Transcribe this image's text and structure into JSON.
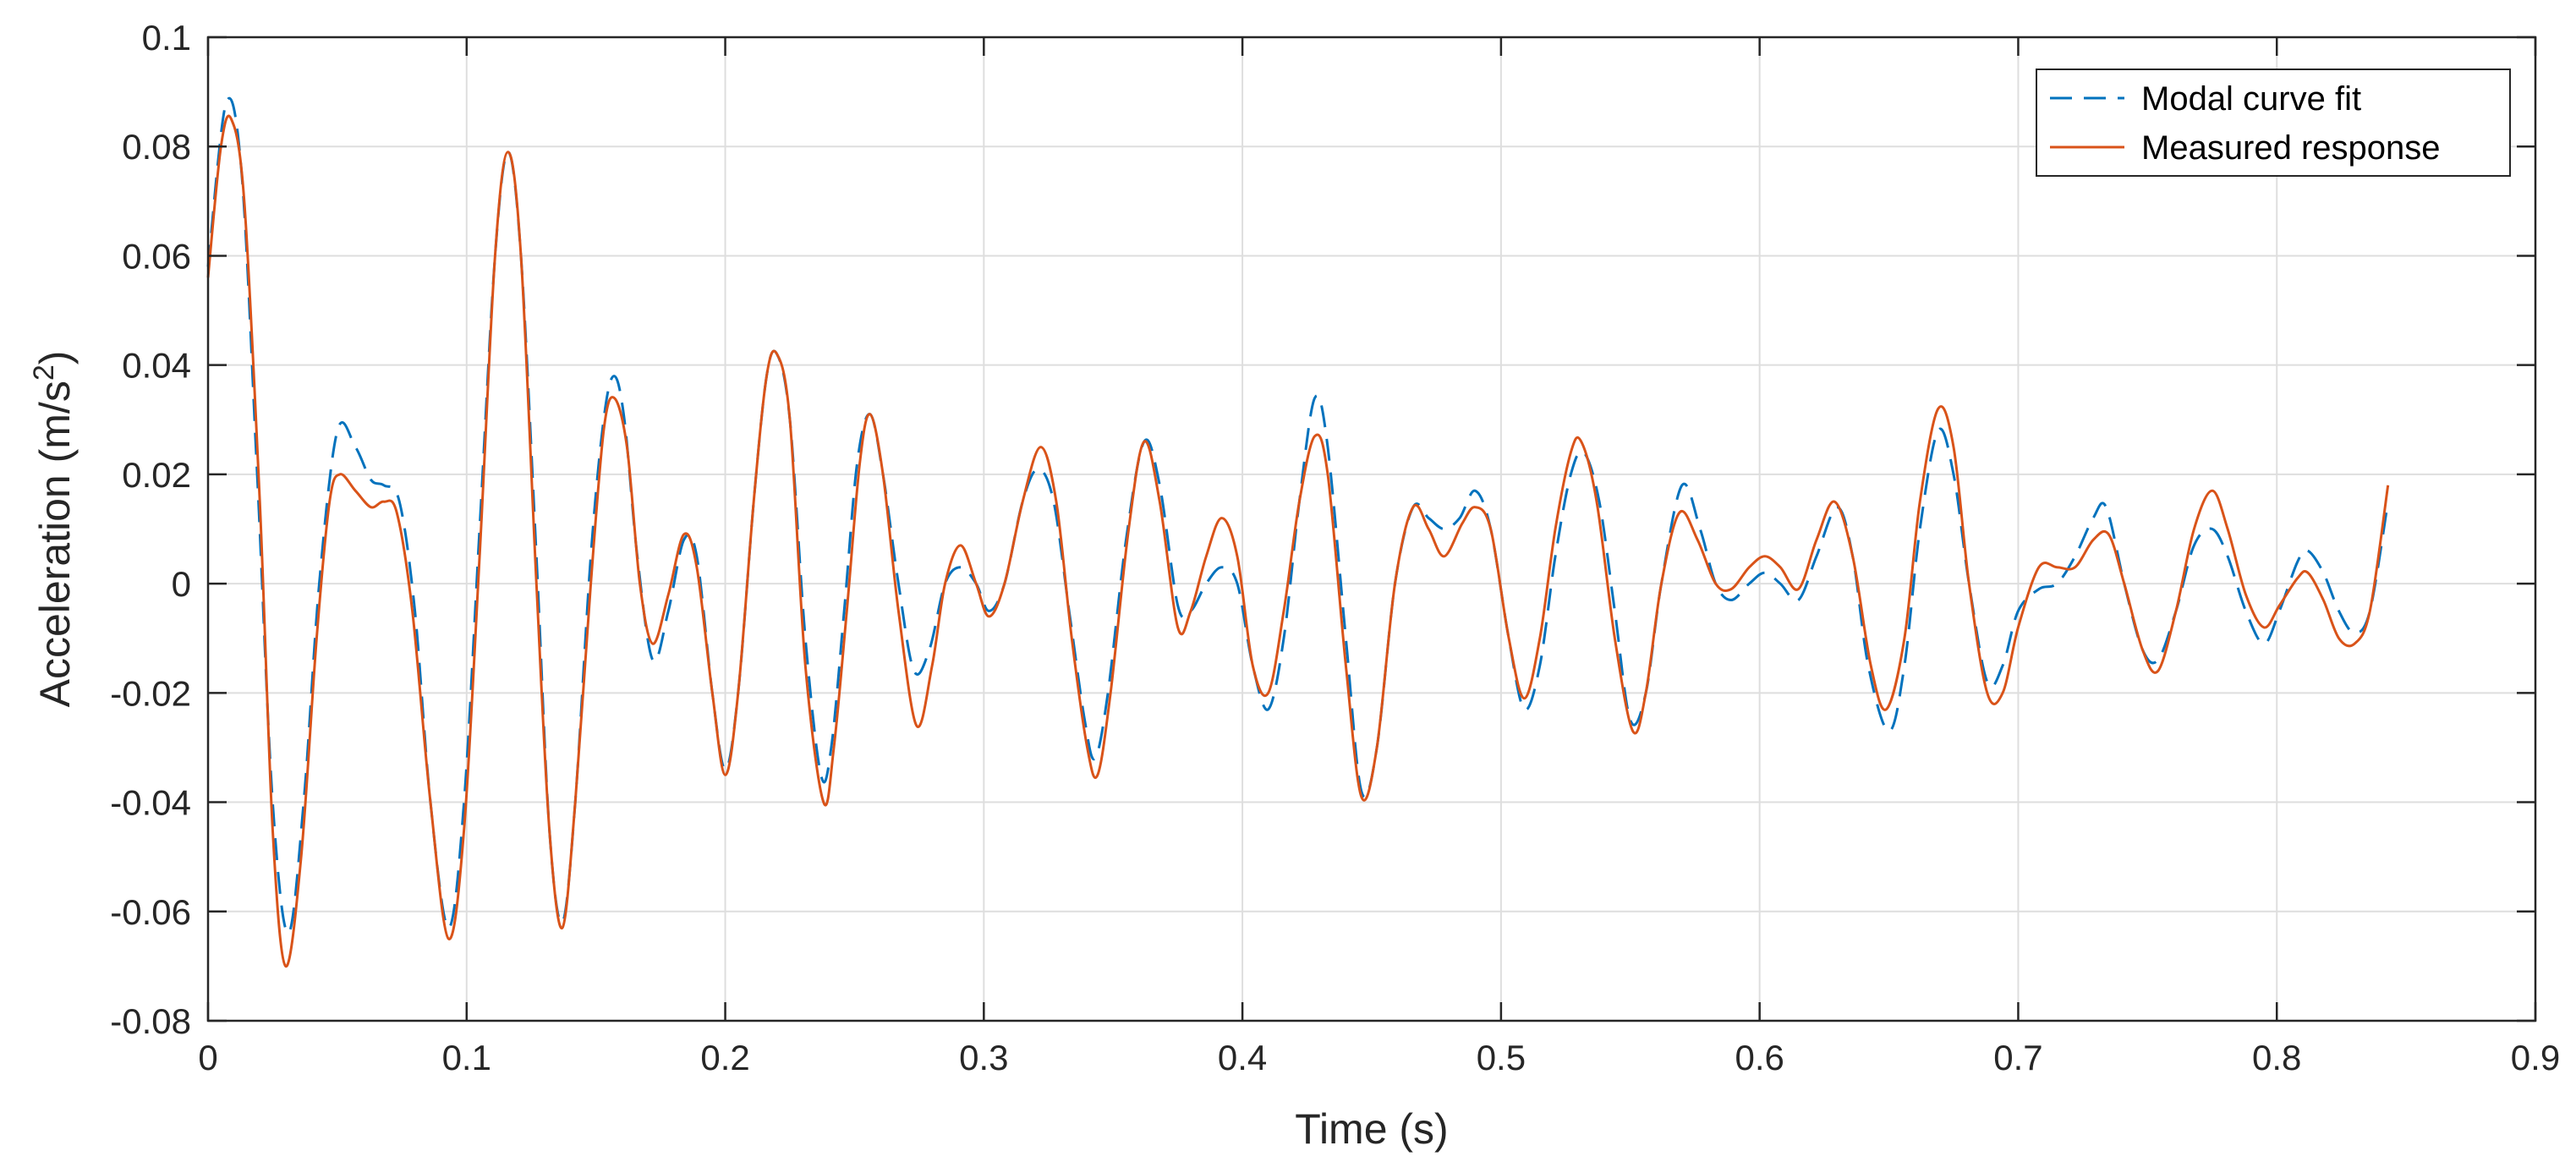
{
  "chart_data": {
    "type": "line",
    "title": "",
    "xlabel": "Time (s)",
    "ylabel_main": "Acceleration (m/s",
    "ylabel_sup": "2",
    "ylabel_close": ")",
    "xlim": [
      0,
      0.9
    ],
    "ylim": [
      -0.08,
      0.1
    ],
    "x_ticks": [
      0,
      0.1,
      0.2,
      0.3,
      0.4,
      0.5,
      0.6,
      0.7,
      0.8,
      0.9
    ],
    "x_tick_labels": [
      "0",
      "0.1",
      "0.2",
      "0.3",
      "0.4",
      "0.5",
      "0.6",
      "0.7",
      "0.8",
      "0.9"
    ],
    "y_ticks": [
      -0.08,
      -0.06,
      -0.04,
      -0.02,
      0,
      0.02,
      0.04,
      0.06,
      0.08,
      0.1
    ],
    "y_tick_labels": [
      "-0.08",
      "-0.06",
      "-0.04",
      "-0.02",
      "0",
      "0.02",
      "0.04",
      "0.06",
      "0.08",
      "0.1"
    ],
    "grid": true,
    "legend_position": "top-right",
    "series": [
      {
        "name": "Modal curve fit",
        "color": "#0072BD",
        "style": "dashed",
        "points": [
          [
            0.0,
            0.058
          ],
          [
            0.007,
            0.088
          ],
          [
            0.013,
            0.075
          ],
          [
            0.019,
            0.02
          ],
          [
            0.025,
            -0.04
          ],
          [
            0.031,
            -0.064
          ],
          [
            0.037,
            -0.04
          ],
          [
            0.043,
            0.0
          ],
          [
            0.05,
            0.028
          ],
          [
            0.057,
            0.025
          ],
          [
            0.063,
            0.019
          ],
          [
            0.068,
            0.018
          ],
          [
            0.074,
            0.015
          ],
          [
            0.08,
            -0.005
          ],
          [
            0.086,
            -0.04
          ],
          [
            0.093,
            -0.063
          ],
          [
            0.099,
            -0.04
          ],
          [
            0.105,
            0.01
          ],
          [
            0.111,
            0.06
          ],
          [
            0.116,
            0.079
          ],
          [
            0.121,
            0.06
          ],
          [
            0.127,
            0.005
          ],
          [
            0.132,
            -0.045
          ],
          [
            0.137,
            -0.062
          ],
          [
            0.142,
            -0.04
          ],
          [
            0.148,
            0.005
          ],
          [
            0.153,
            0.03
          ],
          [
            0.157,
            0.038
          ],
          [
            0.161,
            0.03
          ],
          [
            0.166,
            0.005
          ],
          [
            0.172,
            -0.014
          ],
          [
            0.178,
            -0.005
          ],
          [
            0.184,
            0.008
          ],
          [
            0.189,
            0.005
          ],
          [
            0.195,
            -0.02
          ],
          [
            0.2,
            -0.034
          ],
          [
            0.205,
            -0.02
          ],
          [
            0.211,
            0.015
          ],
          [
            0.216,
            0.038
          ],
          [
            0.22,
            0.042
          ],
          [
            0.225,
            0.03
          ],
          [
            0.231,
            -0.01
          ],
          [
            0.237,
            -0.035
          ],
          [
            0.241,
            -0.03
          ],
          [
            0.246,
            -0.005
          ],
          [
            0.251,
            0.022
          ],
          [
            0.256,
            0.031
          ],
          [
            0.261,
            0.02
          ],
          [
            0.267,
            0.0
          ],
          [
            0.273,
            -0.016
          ],
          [
            0.279,
            -0.012
          ],
          [
            0.285,
            0.0
          ],
          [
            0.291,
            0.003
          ],
          [
            0.297,
            0.0
          ],
          [
            0.302,
            -0.005
          ],
          [
            0.308,
            0.0
          ],
          [
            0.315,
            0.015
          ],
          [
            0.321,
            0.021
          ],
          [
            0.327,
            0.015
          ],
          [
            0.333,
            -0.005
          ],
          [
            0.339,
            -0.025
          ],
          [
            0.343,
            -0.032
          ],
          [
            0.348,
            -0.02
          ],
          [
            0.355,
            0.008
          ],
          [
            0.362,
            0.026
          ],
          [
            0.368,
            0.018
          ],
          [
            0.375,
            -0.004
          ],
          [
            0.38,
            -0.005
          ],
          [
            0.386,
            0.0
          ],
          [
            0.392,
            0.003
          ],
          [
            0.398,
            0.0
          ],
          [
            0.404,
            -0.015
          ],
          [
            0.41,
            -0.023
          ],
          [
            0.416,
            -0.01
          ],
          [
            0.422,
            0.015
          ],
          [
            0.428,
            0.034
          ],
          [
            0.433,
            0.025
          ],
          [
            0.44,
            -0.01
          ],
          [
            0.446,
            -0.038
          ],
          [
            0.452,
            -0.03
          ],
          [
            0.459,
            0.0
          ],
          [
            0.466,
            0.014
          ],
          [
            0.472,
            0.012
          ],
          [
            0.478,
            0.01
          ],
          [
            0.484,
            0.012
          ],
          [
            0.49,
            0.017
          ],
          [
            0.496,
            0.01
          ],
          [
            0.503,
            -0.01
          ],
          [
            0.509,
            -0.023
          ],
          [
            0.515,
            -0.015
          ],
          [
            0.521,
            0.005
          ],
          [
            0.527,
            0.02
          ],
          [
            0.532,
            0.024
          ],
          [
            0.538,
            0.015
          ],
          [
            0.544,
            -0.005
          ],
          [
            0.55,
            -0.025
          ],
          [
            0.556,
            -0.02
          ],
          [
            0.562,
            0.0
          ],
          [
            0.57,
            0.018
          ],
          [
            0.577,
            0.01
          ],
          [
            0.583,
            0.0
          ],
          [
            0.589,
            -0.003
          ],
          [
            0.596,
            0.0
          ],
          [
            0.602,
            0.002
          ],
          [
            0.608,
            0.0
          ],
          [
            0.615,
            -0.003
          ],
          [
            0.622,
            0.005
          ],
          [
            0.63,
            0.014
          ],
          [
            0.636,
            0.005
          ],
          [
            0.642,
            -0.015
          ],
          [
            0.65,
            -0.027
          ],
          [
            0.656,
            -0.015
          ],
          [
            0.662,
            0.01
          ],
          [
            0.669,
            0.028
          ],
          [
            0.675,
            0.02
          ],
          [
            0.681,
            0.0
          ],
          [
            0.688,
            -0.018
          ],
          [
            0.694,
            -0.015
          ],
          [
            0.7,
            -0.005
          ],
          [
            0.708,
            -0.001
          ],
          [
            0.715,
            0.0
          ],
          [
            0.722,
            0.005
          ],
          [
            0.729,
            0.012
          ],
          [
            0.734,
            0.014
          ],
          [
            0.741,
            0.0
          ],
          [
            0.748,
            -0.012
          ],
          [
            0.754,
            -0.014
          ],
          [
            0.761,
            -0.005
          ],
          [
            0.768,
            0.007
          ],
          [
            0.775,
            0.01
          ],
          [
            0.781,
            0.005
          ],
          [
            0.788,
            -0.005
          ],
          [
            0.795,
            -0.011
          ],
          [
            0.801,
            -0.005
          ],
          [
            0.808,
            0.004
          ],
          [
            0.812,
            0.006
          ],
          [
            0.818,
            0.002
          ],
          [
            0.824,
            -0.005
          ],
          [
            0.83,
            -0.009
          ],
          [
            0.836,
            -0.005
          ],
          [
            0.843,
            0.015
          ]
        ]
      },
      {
        "name": "Measured response",
        "color": "#D95319",
        "style": "solid",
        "points": [
          [
            0.0,
            0.056
          ],
          [
            0.005,
            0.08
          ],
          [
            0.009,
            0.085
          ],
          [
            0.014,
            0.07
          ],
          [
            0.02,
            0.015
          ],
          [
            0.025,
            -0.045
          ],
          [
            0.03,
            -0.07
          ],
          [
            0.036,
            -0.05
          ],
          [
            0.042,
            -0.01
          ],
          [
            0.047,
            0.015
          ],
          [
            0.051,
            0.02
          ],
          [
            0.057,
            0.017
          ],
          [
            0.063,
            0.014
          ],
          [
            0.068,
            0.015
          ],
          [
            0.073,
            0.013
          ],
          [
            0.079,
            -0.005
          ],
          [
            0.086,
            -0.04
          ],
          [
            0.093,
            -0.065
          ],
          [
            0.099,
            -0.045
          ],
          [
            0.105,
            0.005
          ],
          [
            0.111,
            0.06
          ],
          [
            0.116,
            0.079
          ],
          [
            0.121,
            0.06
          ],
          [
            0.127,
            0.0
          ],
          [
            0.132,
            -0.045
          ],
          [
            0.137,
            -0.063
          ],
          [
            0.142,
            -0.04
          ],
          [
            0.148,
            0.0
          ],
          [
            0.153,
            0.028
          ],
          [
            0.157,
            0.034
          ],
          [
            0.162,
            0.025
          ],
          [
            0.167,
            0.0
          ],
          [
            0.172,
            -0.011
          ],
          [
            0.178,
            -0.002
          ],
          [
            0.184,
            0.009
          ],
          [
            0.189,
            0.003
          ],
          [
            0.195,
            -0.02
          ],
          [
            0.2,
            -0.035
          ],
          [
            0.205,
            -0.02
          ],
          [
            0.211,
            0.015
          ],
          [
            0.216,
            0.038
          ],
          [
            0.22,
            0.042
          ],
          [
            0.225,
            0.03
          ],
          [
            0.231,
            -0.015
          ],
          [
            0.238,
            -0.04
          ],
          [
            0.242,
            -0.03
          ],
          [
            0.247,
            -0.005
          ],
          [
            0.252,
            0.022
          ],
          [
            0.256,
            0.031
          ],
          [
            0.261,
            0.02
          ],
          [
            0.267,
            -0.005
          ],
          [
            0.274,
            -0.026
          ],
          [
            0.28,
            -0.015
          ],
          [
            0.285,
            0.0
          ],
          [
            0.291,
            0.007
          ],
          [
            0.297,
            0.0
          ],
          [
            0.302,
            -0.006
          ],
          [
            0.308,
            0.0
          ],
          [
            0.315,
            0.015
          ],
          [
            0.322,
            0.025
          ],
          [
            0.328,
            0.015
          ],
          [
            0.334,
            -0.01
          ],
          [
            0.34,
            -0.03
          ],
          [
            0.344,
            -0.035
          ],
          [
            0.349,
            -0.02
          ],
          [
            0.356,
            0.01
          ],
          [
            0.362,
            0.026
          ],
          [
            0.368,
            0.015
          ],
          [
            0.375,
            -0.008
          ],
          [
            0.38,
            -0.005
          ],
          [
            0.386,
            0.005
          ],
          [
            0.392,
            0.012
          ],
          [
            0.398,
            0.005
          ],
          [
            0.404,
            -0.015
          ],
          [
            0.41,
            -0.02
          ],
          [
            0.416,
            -0.005
          ],
          [
            0.422,
            0.015
          ],
          [
            0.428,
            0.027
          ],
          [
            0.433,
            0.02
          ],
          [
            0.44,
            -0.015
          ],
          [
            0.446,
            -0.039
          ],
          [
            0.452,
            -0.03
          ],
          [
            0.459,
            0.0
          ],
          [
            0.466,
            0.014
          ],
          [
            0.472,
            0.01
          ],
          [
            0.478,
            0.005
          ],
          [
            0.485,
            0.011
          ],
          [
            0.49,
            0.014
          ],
          [
            0.496,
            0.01
          ],
          [
            0.503,
            -0.01
          ],
          [
            0.509,
            -0.021
          ],
          [
            0.515,
            -0.01
          ],
          [
            0.521,
            0.01
          ],
          [
            0.527,
            0.024
          ],
          [
            0.531,
            0.026
          ],
          [
            0.537,
            0.015
          ],
          [
            0.544,
            -0.01
          ],
          [
            0.551,
            -0.027
          ],
          [
            0.556,
            -0.02
          ],
          [
            0.562,
            0.0
          ],
          [
            0.569,
            0.013
          ],
          [
            0.576,
            0.008
          ],
          [
            0.583,
            0.0
          ],
          [
            0.589,
            -0.001
          ],
          [
            0.596,
            0.003
          ],
          [
            0.602,
            0.005
          ],
          [
            0.608,
            0.003
          ],
          [
            0.615,
            -0.001
          ],
          [
            0.622,
            0.008
          ],
          [
            0.629,
            0.015
          ],
          [
            0.636,
            0.005
          ],
          [
            0.643,
            -0.015
          ],
          [
            0.649,
            -0.023
          ],
          [
            0.656,
            -0.01
          ],
          [
            0.662,
            0.015
          ],
          [
            0.669,
            0.032
          ],
          [
            0.675,
            0.025
          ],
          [
            0.681,
            0.0
          ],
          [
            0.688,
            -0.02
          ],
          [
            0.694,
            -0.02
          ],
          [
            0.7,
            -0.008
          ],
          [
            0.708,
            0.003
          ],
          [
            0.715,
            0.003
          ],
          [
            0.722,
            0.003
          ],
          [
            0.729,
            0.008
          ],
          [
            0.735,
            0.009
          ],
          [
            0.741,
            0.0
          ],
          [
            0.748,
            -0.012
          ],
          [
            0.754,
            -0.016
          ],
          [
            0.761,
            -0.005
          ],
          [
            0.768,
            0.01
          ],
          [
            0.775,
            0.017
          ],
          [
            0.781,
            0.01
          ],
          [
            0.788,
            -0.002
          ],
          [
            0.795,
            -0.008
          ],
          [
            0.801,
            -0.004
          ],
          [
            0.808,
            0.001
          ],
          [
            0.812,
            0.002
          ],
          [
            0.818,
            -0.003
          ],
          [
            0.824,
            -0.01
          ],
          [
            0.83,
            -0.011
          ],
          [
            0.836,
            -0.005
          ],
          [
            0.843,
            0.018
          ]
        ]
      }
    ]
  }
}
